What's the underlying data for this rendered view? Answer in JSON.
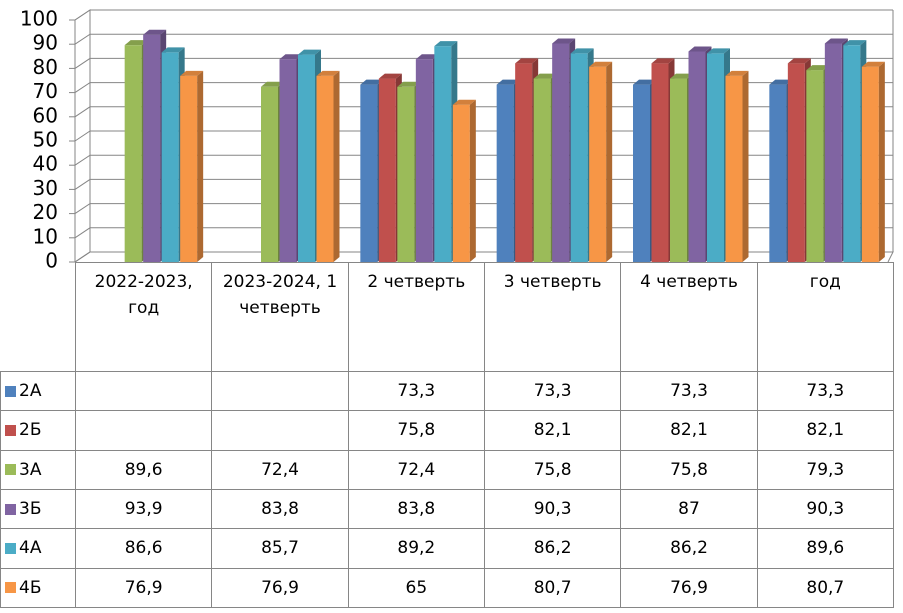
{
  "chart_data": {
    "type": "bar3d",
    "categories": [
      "2022-2023, год",
      "2023-2024, 1 четверть",
      "2 четверть",
      "3 четверть",
      "4 четверть",
      "год"
    ],
    "series": [
      {
        "name": "2А",
        "color": "#4f81bd",
        "values": [
          null,
          null,
          73.3,
          73.3,
          73.3,
          73.3
        ],
        "value_labels": [
          null,
          null,
          "73,3",
          "73,3",
          "73,3",
          "73,3"
        ]
      },
      {
        "name": "2Б",
        "color": "#c0504d",
        "values": [
          null,
          null,
          75.8,
          82.1,
          82.1,
          82.1
        ],
        "value_labels": [
          null,
          null,
          "75,8",
          "82,1",
          "82,1",
          "82,1"
        ]
      },
      {
        "name": "3А",
        "color": "#9bbb59",
        "values": [
          89.6,
          72.4,
          72.4,
          75.8,
          75.8,
          79.3
        ],
        "value_labels": [
          "89,6",
          "72,4",
          "72,4",
          "75,8",
          "75,8",
          "79,3"
        ]
      },
      {
        "name": "3Б",
        "color": "#8064a2",
        "values": [
          93.9,
          83.8,
          83.8,
          90.3,
          87,
          90.3
        ],
        "value_labels": [
          "93,9",
          "83,8",
          "83,8",
          "90,3",
          "87",
          "90,3"
        ]
      },
      {
        "name": "4А",
        "color": "#4bacc6",
        "values": [
          86.6,
          85.7,
          89.2,
          86.2,
          86.2,
          89.6
        ],
        "value_labels": [
          "86,6",
          "85,7",
          "89,2",
          "86,2",
          "86,2",
          "89,6"
        ]
      },
      {
        "name": "4Б",
        "color": "#f79646",
        "values": [
          76.9,
          76.9,
          65,
          80.7,
          76.9,
          80.7
        ],
        "value_labels": [
          "76,9",
          "76,9",
          "65",
          "80,7",
          "76,9",
          "80,7"
        ]
      }
    ],
    "ylim": [
      0,
      100
    ],
    "yticks": [
      0,
      10,
      20,
      30,
      40,
      50,
      60,
      70,
      80,
      90,
      100
    ],
    "grid": true
  }
}
